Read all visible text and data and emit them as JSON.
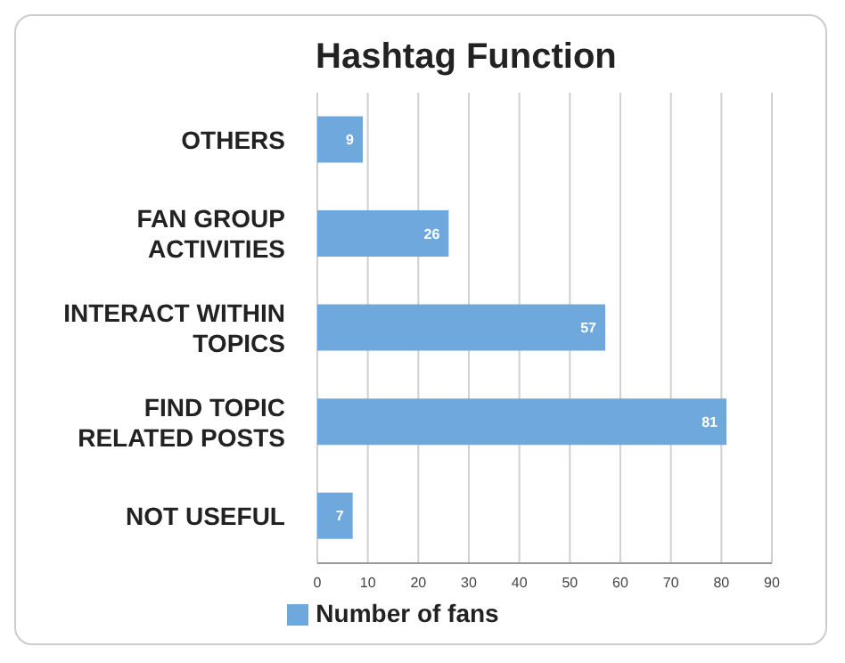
{
  "chart_data": {
    "type": "bar",
    "orientation": "horizontal",
    "title": "Hashtag Function",
    "categories": [
      "OTHERS",
      "FAN GROUP ACTIVITIES",
      "INTERACT WITHIN TOPICS",
      "FIND TOPIC RELATED POSTS",
      "NOT USEFUL"
    ],
    "series": [
      {
        "name": "Number of fans",
        "color": "#6fa8dc",
        "values": [
          9,
          26,
          57,
          81,
          7
        ]
      }
    ],
    "xlim": [
      0,
      90
    ],
    "xticks": [
      0,
      10,
      20,
      30,
      40,
      50,
      60,
      70,
      80,
      90
    ],
    "grid": "x",
    "legend": "bottom",
    "data_labels": true
  }
}
